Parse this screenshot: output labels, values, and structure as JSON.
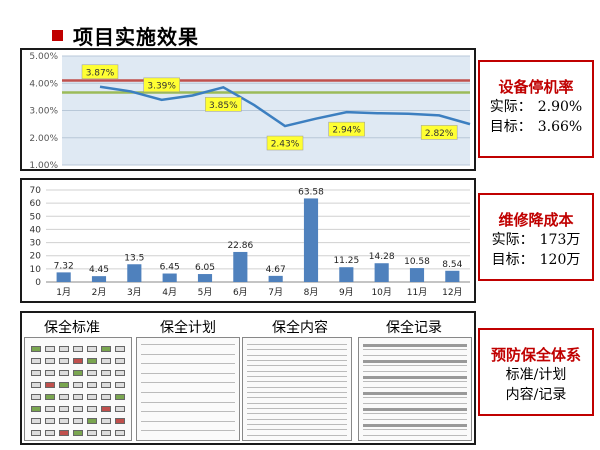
{
  "slide": {
    "title": "项目实施效果"
  },
  "kpis": [
    {
      "title": "设备停机率",
      "lines": [
        {
          "label": "实际：",
          "value": "2.90%"
        },
        {
          "label": "目标：",
          "value": "3.66%"
        }
      ]
    },
    {
      "title": "维修降成本",
      "lines": [
        {
          "label": "实际：",
          "value": "173万"
        },
        {
          "label": "目标：",
          "value": "120万"
        }
      ]
    },
    {
      "title": "预防保全体系",
      "lines": [
        {
          "label": "标准/计划",
          "value": ""
        },
        {
          "label": "内容/记录",
          "value": ""
        }
      ]
    }
  ],
  "docs": {
    "headers": [
      "保全标准",
      "保全计划",
      "保全内容",
      "保全记录"
    ]
  },
  "chart_data": [
    {
      "type": "line",
      "title": "",
      "xlabel": "",
      "ylabel": "",
      "ylim": [
        1.0,
        5.0
      ],
      "y_ticks": [
        "1.00%",
        "2.00%",
        "3.00%",
        "4.00%",
        "5.00%"
      ],
      "grid": true,
      "series": [
        {
          "values": [
            3.87,
            3.7,
            3.39,
            3.55,
            3.85,
            3.2,
            2.43,
            2.7,
            2.94,
            2.9,
            2.88,
            2.82,
            2.5
          ],
          "color": "#3c7fc0"
        }
      ],
      "reference_lines": [
        {
          "value": 4.1,
          "color": "#c0504d"
        },
        {
          "value": 3.66,
          "color": "#9bbb59"
        }
      ],
      "annotations": [
        {
          "text": "3.87%",
          "index": 0,
          "value": 3.87
        },
        {
          "text": "3.39%",
          "index": 2,
          "value": 3.39
        },
        {
          "text": "3.85%",
          "index": 4,
          "value": 3.85
        },
        {
          "text": "2.43%",
          "index": 6,
          "value": 2.43
        },
        {
          "text": "2.94%",
          "index": 8,
          "value": 2.94
        },
        {
          "text": "2.82%",
          "index": 11,
          "value": 2.82
        }
      ]
    },
    {
      "type": "bar",
      "title": "",
      "xlabel": "",
      "ylabel": "",
      "ylim": [
        0,
        70
      ],
      "y_ticks": [
        0,
        10,
        20,
        30,
        40,
        50,
        60,
        70
      ],
      "grid": true,
      "categories": [
        "1月",
        "2月",
        "3月",
        "4月",
        "5月",
        "6月",
        "7月",
        "8月",
        "9月",
        "10月",
        "11月",
        "12月"
      ],
      "values": [
        7.32,
        4.45,
        13.5,
        6.45,
        6.05,
        22.86,
        4.67,
        63.58,
        11.25,
        14.28,
        10.58,
        8.54
      ],
      "labels": [
        "7.32",
        "4.45",
        "13.5",
        "6.45",
        "6.05",
        "22.86",
        "4.67",
        "63.58",
        "11.25",
        "14.28",
        "10.58",
        "8.54"
      ],
      "color": "#4f81bd"
    }
  ]
}
